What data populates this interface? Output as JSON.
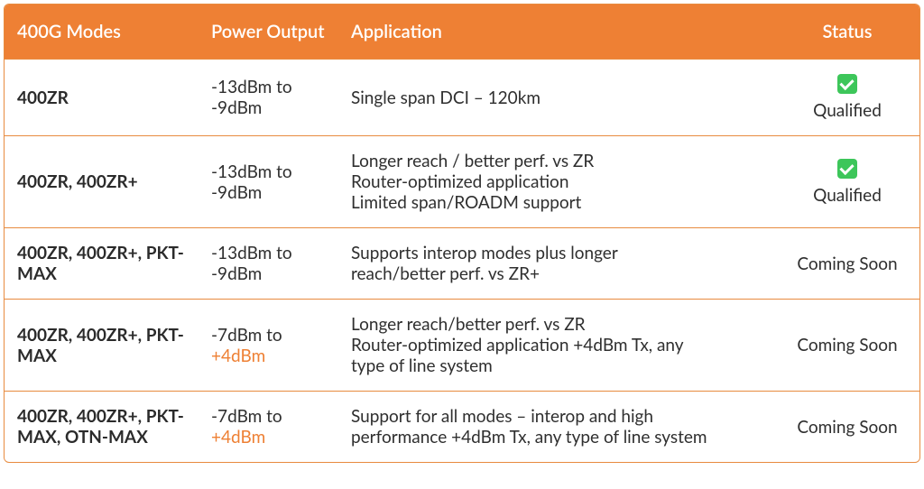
{
  "table": {
    "headers": {
      "modes": "400G Modes",
      "power": "Power Output",
      "app": "Application",
      "status": "Status"
    },
    "colors": {
      "header_bg": "#ee8034",
      "header_text": "#ffffff",
      "border": "#e88b3f",
      "text": "#2f2f2f",
      "accent": "#ee8034",
      "check_bg": "#3dc65a"
    },
    "rows": [
      {
        "modes": "400ZR",
        "power_from": "-13dBm to",
        "power_to": "-9dBm",
        "power_to_accent": false,
        "app1": "Single span DCI – 120km",
        "app2": "",
        "app3": "",
        "status_kind": "qualified",
        "status_text": "Qualified"
      },
      {
        "modes": "400ZR, 400ZR+",
        "power_from": "-13dBm to",
        "power_to": "-9dBm",
        "power_to_accent": false,
        "app1": "Longer reach / better perf. vs ZR",
        "app2": "Router-optimized application",
        "app3": "Limited span/ROADM support",
        "status_kind": "qualified",
        "status_text": "Qualified"
      },
      {
        "modes": "400ZR, 400ZR+, PKT-MAX",
        "power_from": "-13dBm to",
        "power_to": "-9dBm",
        "power_to_accent": false,
        "app1": "Supports interop modes plus longer",
        "app2": "reach/better perf. vs ZR+",
        "app3": "",
        "status_kind": "coming",
        "status_text": "Coming Soon"
      },
      {
        "modes": "400ZR, 400ZR+, PKT-MAX",
        "power_from": "-7dBm to",
        "power_to": "+4dBm",
        "power_to_accent": true,
        "app1": "Longer reach/better perf. vs ZR",
        "app2": "Router-optimized application +4dBm Tx, any",
        "app3": "type of line system",
        "status_kind": "coming",
        "status_text": "Coming Soon"
      },
      {
        "modes": "400ZR, 400ZR+, PKT-MAX, OTN-MAX",
        "power_from": "-7dBm to",
        "power_to": "+4dBm",
        "power_to_accent": true,
        "app1": "Support for all modes – interop and high",
        "app2": "performance +4dBm Tx, any type of line system",
        "app3": "",
        "status_kind": "coming",
        "status_text": "Coming Soon"
      }
    ]
  }
}
